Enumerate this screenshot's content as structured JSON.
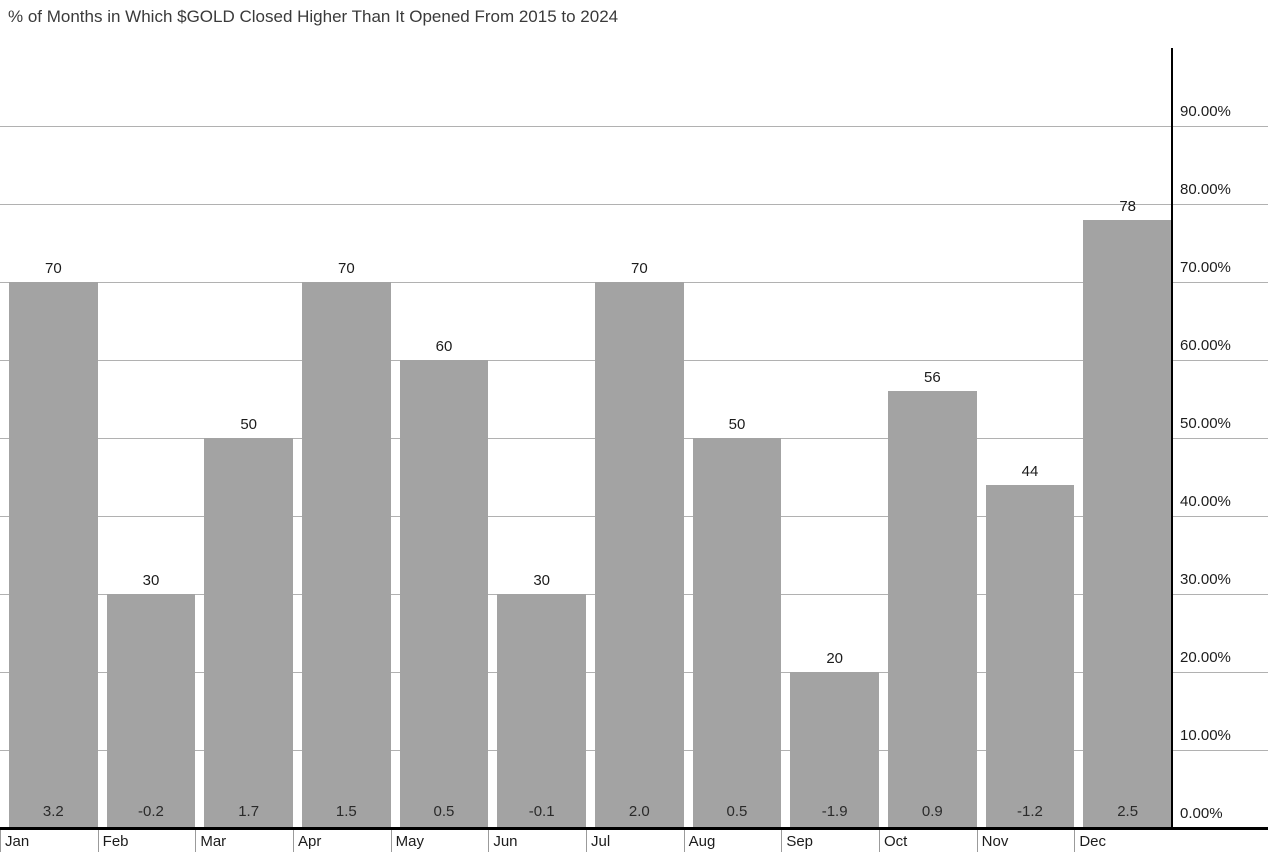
{
  "title": "% of Months in Which $GOLD Closed Higher Than It Opened From 2015 to 2024",
  "chart_data": {
    "type": "bar",
    "title": "% of Months in Which $GOLD Closed Higher Than It Opened From 2015 to 2024",
    "categories": [
      "Jan",
      "Feb",
      "Mar",
      "Apr",
      "May",
      "Jun",
      "Jul",
      "Aug",
      "Sep",
      "Oct",
      "Nov",
      "Dec"
    ],
    "series": [
      {
        "name": "pct_months_closed_higher",
        "values": [
          70,
          30,
          50,
          70,
          60,
          30,
          70,
          50,
          20,
          56,
          44,
          78
        ]
      },
      {
        "name": "bottom_value_labels",
        "values": [
          "3.2",
          "-0.2",
          "1.7",
          "1.5",
          "0.5",
          "-0.1",
          "2.0",
          "0.5",
          "-1.9",
          "0.9",
          "-1.2",
          "2.5"
        ]
      }
    ],
    "bar_top_labels": [
      "70",
      "30",
      "50",
      "70",
      "60",
      "30",
      "70",
      "50",
      "20",
      "56",
      "44",
      "78"
    ],
    "xlabel": "",
    "ylabel": "",
    "ylim": [
      0,
      100
    ],
    "y_ticks": [
      {
        "value": 0,
        "label": "0.00%"
      },
      {
        "value": 10,
        "label": "10.00%"
      },
      {
        "value": 20,
        "label": "20.00%"
      },
      {
        "value": 30,
        "label": "30.00%"
      },
      {
        "value": 40,
        "label": "40.00%"
      },
      {
        "value": 50,
        "label": "50.00%"
      },
      {
        "value": 60,
        "label": "60.00%"
      },
      {
        "value": 70,
        "label": "70.00%"
      },
      {
        "value": 80,
        "label": "80.00%"
      },
      {
        "value": 90,
        "label": "90.00%"
      }
    ],
    "grid": true,
    "legend": false,
    "y_axis_side": "right",
    "colors": {
      "bar": "#a3a3a3",
      "gridline": "#b1b1b1",
      "axis": "#000000",
      "tick_label": "#1c1c1c",
      "title": "#3a3a3a",
      "background": "#ffffff"
    }
  }
}
